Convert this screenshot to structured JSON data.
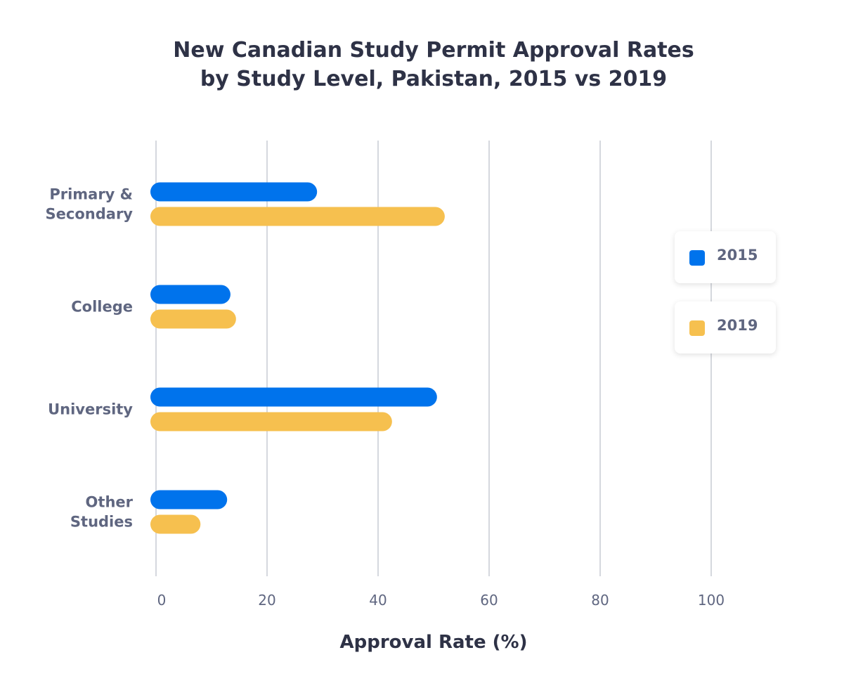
{
  "chart_data": {
    "type": "bar",
    "orientation": "horizontal",
    "title": [
      "New Canadian Study Permit Approval Rates",
      "by Study Level, Pakistan, 2015 vs 2019"
    ],
    "xlabel": "Approval Rate (%)",
    "ylabel": "",
    "categories": [
      [
        "Primary &",
        "Secondary"
      ],
      [
        "College"
      ],
      [
        "University"
      ],
      [
        "Other",
        "Studies"
      ]
    ],
    "series": [
      {
        "name": "2015",
        "color": "#0073ec",
        "values": [
          28.0,
          12.4,
          49.6,
          11.8
        ]
      },
      {
        "name": "2019",
        "color": "#f6c04f",
        "values": [
          51.0,
          13.4,
          41.5,
          7.0
        ]
      }
    ],
    "xlim": [
      0,
      100
    ],
    "xticks": [
      "0",
      "20",
      "40",
      "60",
      "80",
      "100"
    ],
    "grid": "vertical",
    "legend_placement": "right"
  }
}
